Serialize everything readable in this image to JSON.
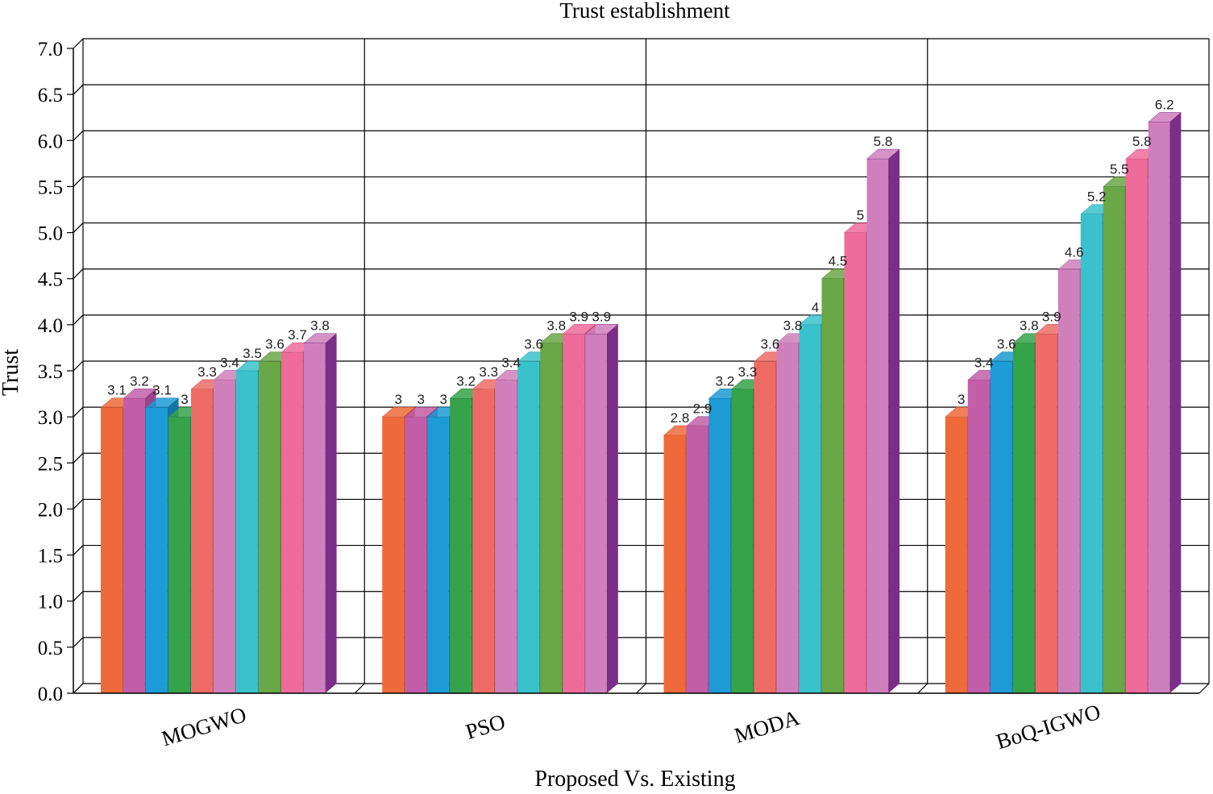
{
  "chart_data": {
    "type": "bar",
    "title": "Trust establishment",
    "xlabel": "Proposed Vs. Existing",
    "ylabel": "Trust",
    "ylim": [
      0,
      7
    ],
    "yticks": [
      "0.0",
      "0.5",
      "1.0",
      "1.5",
      "2.0",
      "2.5",
      "3.0",
      "3.5",
      "4.0",
      "4.5",
      "5.0",
      "5.5",
      "6.0",
      "6.5",
      "7.0"
    ],
    "grid": true,
    "categories": [
      "MOGWO",
      "PSO",
      "MODA",
      "BoQ-IGWO"
    ],
    "series": [
      {
        "values": [
          3.1,
          3.0,
          2.8,
          3.0
        ]
      },
      {
        "values": [
          3.2,
          3.0,
          2.9,
          3.4
        ]
      },
      {
        "values": [
          3.1,
          3.0,
          3.2,
          3.6
        ]
      },
      {
        "values": [
          3.0,
          3.2,
          3.3,
          3.8
        ]
      },
      {
        "values": [
          3.3,
          3.3,
          3.6,
          3.9
        ]
      },
      {
        "values": [
          3.4,
          3.4,
          3.8,
          4.6
        ]
      },
      {
        "values": [
          3.5,
          3.6,
          4.0,
          5.2
        ]
      },
      {
        "values": [
          3.6,
          3.8,
          4.5,
          5.5
        ]
      },
      {
        "values": [
          3.7,
          3.9,
          5.0,
          5.8
        ]
      },
      {
        "values": [
          3.8,
          3.9,
          5.8,
          6.2
        ]
      }
    ],
    "data_labels": [
      [
        "3.1",
        "3",
        "2.8",
        "3"
      ],
      [
        "3.2",
        "3",
        "2.9",
        "3.4"
      ],
      [
        "3.1",
        "3",
        "3.2",
        "3.6"
      ],
      [
        "3",
        "3.2",
        "3.3",
        "3.8"
      ],
      [
        "3.3",
        "3.3",
        "3.6",
        "3.9"
      ],
      [
        "3.4",
        "3.4",
        "3.8",
        "4.6"
      ],
      [
        "3.5",
        "3.6",
        "4",
        "5.2"
      ],
      [
        "3.6",
        "3.8",
        "4.5",
        "5.5"
      ],
      [
        "3.7",
        "3.9",
        "5",
        "5.8"
      ],
      [
        "3.8",
        "3.9",
        "5.8",
        "6.2"
      ]
    ],
    "colors": [
      [
        "#ee6a3a",
        "#c95433"
      ],
      [
        "#c25ea8",
        "#9b4485"
      ],
      [
        "#1c9bd6",
        "#1476a6"
      ],
      [
        "#35a34a",
        "#25783a"
      ],
      [
        "#ee6b66",
        "#c5504d"
      ],
      [
        "#cf7fba",
        "#a8609a"
      ],
      [
        "#39c2cc",
        "#27959e"
      ],
      [
        "#6aa746",
        "#4c7e31"
      ],
      [
        "#ef6b9a",
        "#c54e78"
      ],
      [
        "#cf7fbd",
        "#7b2e88"
      ]
    ]
  }
}
